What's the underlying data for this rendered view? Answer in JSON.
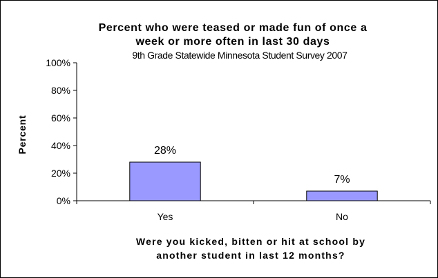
{
  "chart_data": {
    "type": "bar",
    "title": [
      "Percent who were teased or made fun of once a",
      "week or more often in last 30 days"
    ],
    "subtitle": "9th Grade Statewide Minnesota Student Survey 2007",
    "ylabel": "Percent",
    "xlabel": [
      "Were you kicked, bitten or hit at school by",
      "another student in last 12 months?"
    ],
    "categories": [
      "Yes",
      "No"
    ],
    "values": [
      28,
      7
    ],
    "value_labels": [
      "28%",
      "7%"
    ],
    "ylim": [
      0,
      100
    ],
    "yticks": [
      0,
      20,
      40,
      60,
      80,
      100
    ],
    "ytick_labels": [
      "0%",
      "20%",
      "40%",
      "60%",
      "80%",
      "100%"
    ],
    "grid": false,
    "legend": "none",
    "bar_color": "#9999ff"
  }
}
